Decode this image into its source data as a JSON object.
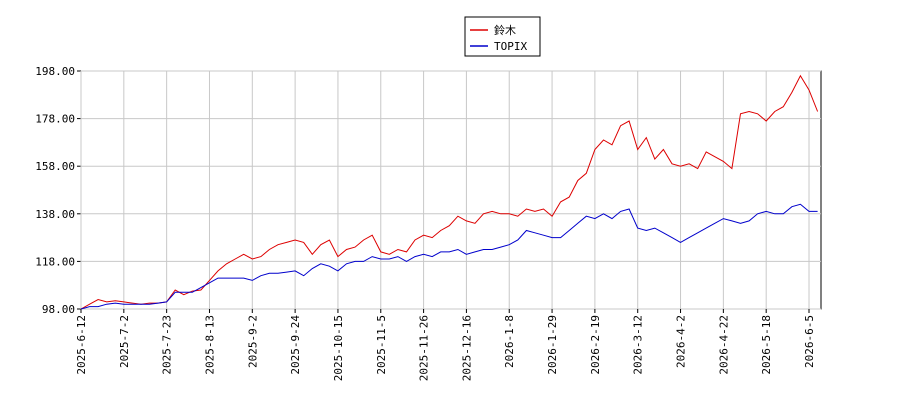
{
  "chart_data": {
    "type": "line",
    "categories": [
      "2025-6-12",
      null,
      null,
      null,
      null,
      "2025-7-2",
      null,
      null,
      null,
      null,
      "2025-7-23",
      null,
      null,
      null,
      null,
      "2025-8-13",
      null,
      null,
      null,
      null,
      "2025-9-2",
      null,
      null,
      null,
      null,
      "2025-9-24",
      null,
      null,
      null,
      null,
      "2025-10-15",
      null,
      null,
      null,
      null,
      "2025-11-5",
      null,
      null,
      null,
      null,
      "2025-11-26",
      null,
      null,
      null,
      null,
      "2025-12-16",
      null,
      null,
      null,
      null,
      "2026-1-8",
      null,
      null,
      null,
      null,
      "2026-1-29",
      null,
      null,
      null,
      null,
      "2026-2-19",
      null,
      null,
      null,
      null,
      "2026-3-12",
      null,
      null,
      null,
      null,
      "2026-4-2",
      null,
      null,
      null,
      null,
      "2026-4-22",
      null,
      null,
      null,
      null,
      "2026-5-18",
      null,
      null,
      null,
      null,
      "2026-6-5",
      null
    ],
    "series": [
      {
        "name": "鈴木",
        "color": "#dd0000",
        "values": [
          98,
          100,
          102,
          101,
          101.5,
          101,
          100.5,
          100,
          100.5,
          100.5,
          101,
          106,
          104,
          105.5,
          106,
          110,
          114,
          117,
          119,
          121,
          119,
          120,
          123,
          125,
          126,
          127,
          126,
          121,
          125,
          127,
          120,
          123,
          124,
          127,
          129,
          122,
          121,
          123,
          122,
          127,
          129,
          128,
          131,
          133,
          137,
          135,
          134,
          138,
          139,
          138,
          138,
          137,
          140,
          139,
          140,
          137,
          143,
          145,
          152,
          155,
          165,
          169,
          167,
          175,
          177,
          165,
          170,
          161,
          165,
          159,
          158,
          159,
          157,
          164,
          162,
          160,
          157,
          180,
          181,
          180,
          177,
          181,
          183,
          189,
          196,
          190,
          181
        ]
      },
      {
        "name": "TOPIX",
        "color": "#0000cc",
        "values": [
          98,
          99,
          99,
          100,
          100.5,
          100,
          100,
          100,
          100,
          100.5,
          101,
          105,
          105,
          105,
          107,
          109,
          111,
          111,
          111,
          111,
          110,
          112,
          113,
          113,
          113.5,
          114,
          112,
          115,
          117,
          116,
          114,
          117,
          118,
          118,
          120,
          119,
          119,
          120,
          118,
          120,
          121,
          120,
          122,
          122,
          123,
          121,
          122,
          123,
          123,
          124,
          125,
          127,
          131,
          130,
          129,
          128,
          128,
          131,
          134,
          137,
          136,
          138,
          136,
          139,
          140,
          132,
          131,
          132,
          130,
          128,
          126,
          128,
          130,
          132,
          134,
          136,
          135,
          134,
          135,
          138,
          139,
          138,
          138,
          141,
          142,
          139,
          139
        ]
      }
    ],
    "ylim": [
      98,
      198
    ],
    "yticks": [
      {
        "value": 98,
        "label": "98.00"
      },
      {
        "value": 118,
        "label": "118.00"
      },
      {
        "value": 138,
        "label": "138.00"
      },
      {
        "value": 158,
        "label": "158.00"
      },
      {
        "value": 178,
        "label": "178.00"
      },
      {
        "value": 198,
        "label": "198.00"
      }
    ],
    "grid": true
  }
}
